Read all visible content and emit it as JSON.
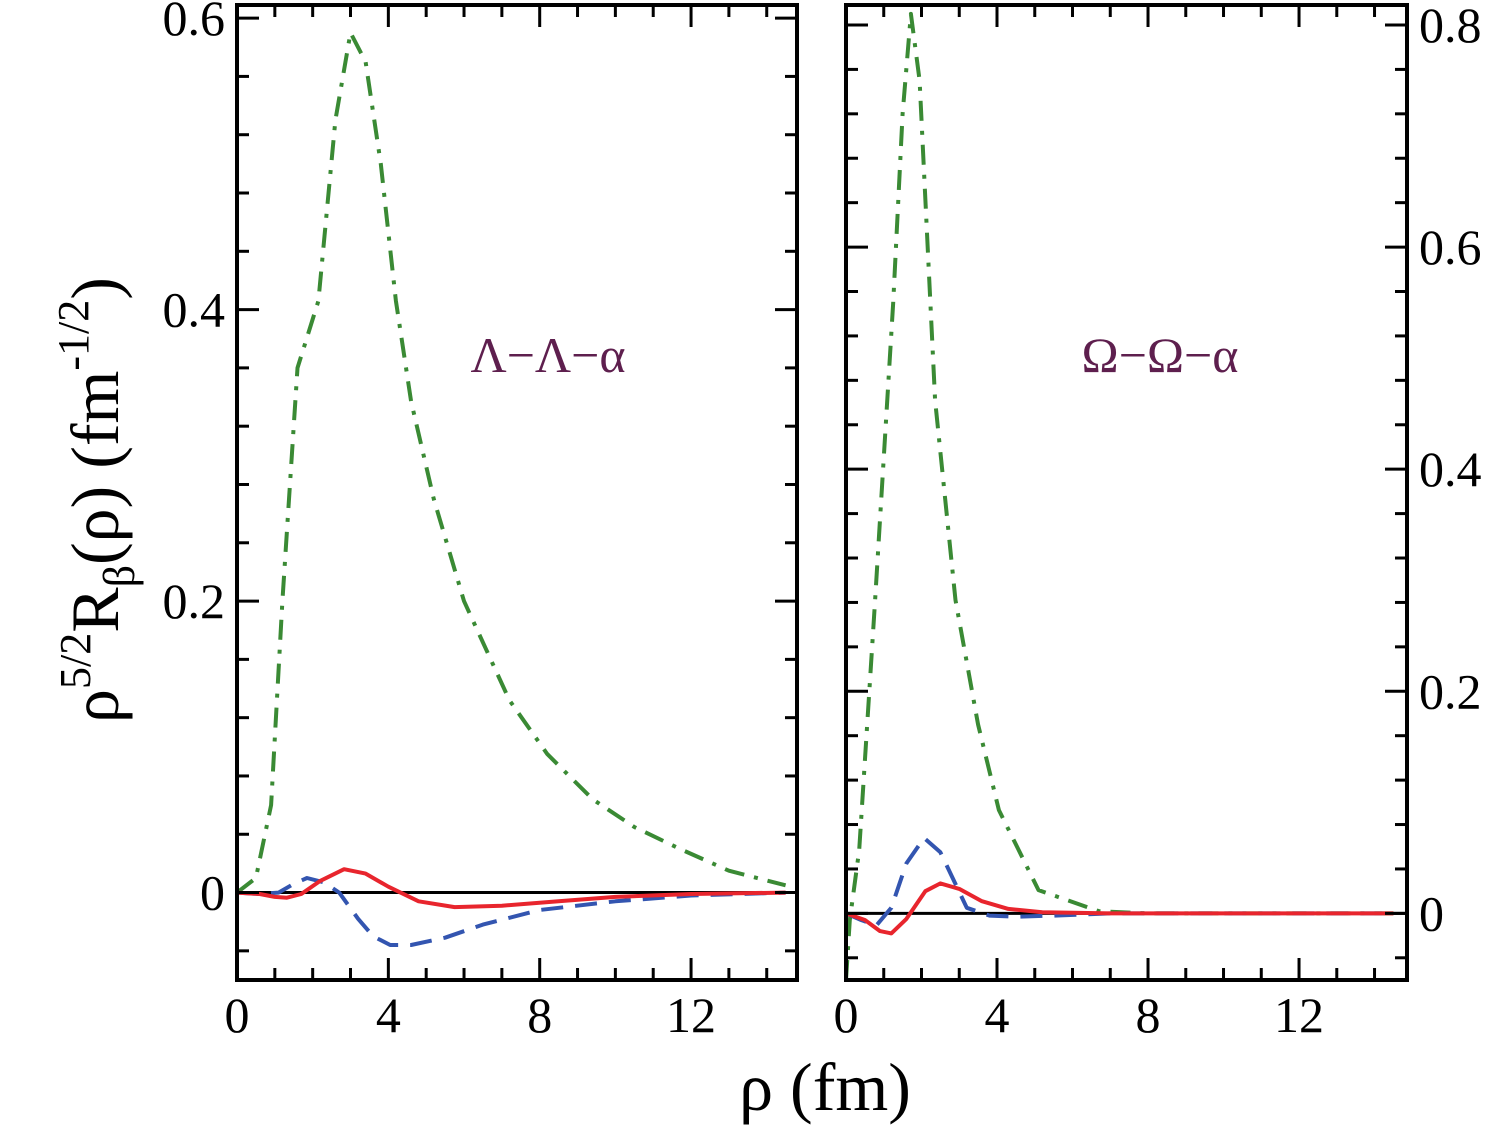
{
  "chart_data": [
    {
      "type": "line",
      "panel": "left",
      "annotation": "Λ−Λ−α",
      "xlabel": "ρ (fm)",
      "ylabel_parts": {
        "rho": "ρ",
        "rho_sup": "5/2",
        "R": "R",
        "R_sub": "β",
        "arg": "(ρ) (fm",
        "unit_sup": "-1/2",
        "close": ")"
      },
      "xlim": [
        0,
        14.8
      ],
      "ylim": [
        -0.06,
        0.609
      ],
      "x_ticks": [
        0,
        4,
        8,
        12
      ],
      "x_tick_labels": [
        "0",
        "4",
        "8",
        "12"
      ],
      "y_ticks": [
        0,
        0.2,
        0.4,
        0.6
      ],
      "y_tick_labels": [
        "0",
        "0.2",
        "0.4",
        "0.6"
      ],
      "y_axis_side": "left",
      "series": [
        {
          "name": "green dash-dot",
          "color": "#3a8a34",
          "style": "dashdot",
          "x": [
            0,
            0.5,
            0.9,
            1.2,
            1.6,
            2.15,
            2.6,
            3.0,
            3.4,
            3.8,
            4.2,
            4.6,
            5.2,
            6.0,
            7.2,
            8.2,
            9.4,
            10.5,
            11.7,
            13,
            14.5
          ],
          "y": [
            0,
            0.01,
            0.06,
            0.2,
            0.36,
            0.406,
            0.53,
            0.59,
            0.57,
            0.5,
            0.406,
            0.337,
            0.27,
            0.2,
            0.132,
            0.095,
            0.064,
            0.045,
            0.03,
            0.015,
            0.005
          ]
        },
        {
          "name": "blue dashed",
          "color": "#3355b0",
          "style": "dashed",
          "x": [
            0,
            0.6,
            1.1,
            1.5,
            1.85,
            2.3,
            2.7,
            3.2,
            3.6,
            4.05,
            4.6,
            5.5,
            6.5,
            8,
            10,
            12,
            14.5
          ],
          "y": [
            0,
            -0.001,
            0.0,
            0.006,
            0.01,
            0.007,
            0.0,
            -0.018,
            -0.03,
            -0.036,
            -0.036,
            -0.031,
            -0.022,
            -0.012,
            -0.006,
            -0.002,
            0
          ]
        },
        {
          "name": "red solid",
          "color": "#e8252d",
          "style": "solid",
          "x": [
            0,
            0.6,
            1.0,
            1.32,
            1.7,
            2.2,
            2.83,
            3.4,
            4.0,
            4.8,
            5.75,
            7,
            8.5,
            10,
            12,
            14.5
          ],
          "y": [
            0,
            -0.001,
            -0.003,
            -0.0035,
            -0.001,
            0.008,
            0.016,
            0.013,
            0.004,
            -0.006,
            -0.01,
            -0.009,
            -0.006,
            -0.003,
            -0.001,
            0
          ]
        }
      ]
    },
    {
      "type": "line",
      "panel": "right",
      "annotation": "Ω−Ω−α",
      "xlim": [
        0,
        14.86
      ],
      "ylim": [
        -0.06,
        0.818
      ],
      "x_ticks": [
        0,
        4,
        8,
        12
      ],
      "x_tick_labels": [
        "0",
        "4",
        "8",
        "12"
      ],
      "y_ticks": [
        0,
        0.2,
        0.4,
        0.6,
        0.8
      ],
      "y_tick_labels": [
        "0",
        "0.2",
        "0.4",
        "0.6",
        "0.8"
      ],
      "y_axis_side": "right",
      "series": [
        {
          "name": "green dash-dot",
          "color": "#3a8a34",
          "style": "dashdot",
          "x": [
            0,
            0.1,
            0.35,
            0.77,
            1.25,
            1.5,
            1.72,
            1.95,
            2.36,
            2.9,
            3.5,
            4.05,
            5.1,
            6.7,
            8,
            14.5
          ],
          "y": [
            -0.06,
            -0.006,
            0.057,
            0.282,
            0.55,
            0.72,
            0.81,
            0.75,
            0.462,
            0.282,
            0.17,
            0.093,
            0.021,
            0.002,
            0,
            0
          ]
        },
        {
          "name": "blue dashed",
          "color": "#3355b0",
          "style": "dashed",
          "x": [
            0,
            0.4,
            0.8,
            1.2,
            1.6,
            2.07,
            2.5,
            3.2,
            3.8,
            4.5,
            5.5,
            7,
            14.5
          ],
          "y": [
            0,
            -0.006,
            -0.011,
            0.005,
            0.045,
            0.068,
            0.055,
            0.005,
            -0.002,
            -0.003,
            -0.002,
            0,
            0
          ]
        },
        {
          "name": "red solid",
          "color": "#e8252d",
          "style": "solid",
          "x": [
            0,
            0.5,
            0.9,
            1.2,
            1.6,
            2.1,
            2.5,
            3.0,
            3.6,
            4.3,
            5.2,
            7,
            14.5
          ],
          "y": [
            0,
            -0.006,
            -0.016,
            -0.018,
            -0.005,
            0.02,
            0.027,
            0.022,
            0.011,
            0.004,
            0.001,
            0,
            0
          ]
        }
      ]
    }
  ],
  "annotation_color": "#5e1f4e"
}
